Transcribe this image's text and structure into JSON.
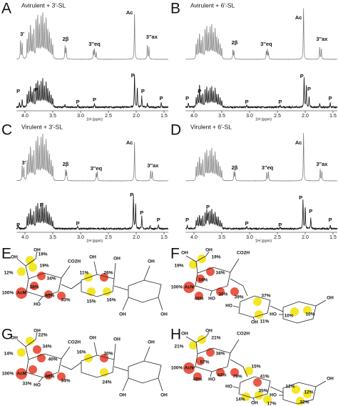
{
  "spectra": [
    {
      "letter": "A",
      "title": "Avirulent + 3'-SL",
      "top_labels": [
        "3'",
        "2β",
        "3''eq",
        "Ac",
        "3''ax"
      ],
      "bottom_labels": [
        "P",
        "P",
        "P",
        "P",
        "P",
        "P",
        "P"
      ],
      "axis_ticks": [
        "4.0",
        "3.5",
        "3.0",
        "2.5",
        "2.0",
        "1.5"
      ],
      "axis_label": "1H (ppm)"
    },
    {
      "letter": "B",
      "title": "Avirulent + 6'-SL",
      "top_labels": [
        "2β",
        "3''eq",
        "Ac",
        "3''ax"
      ],
      "bottom_labels": [
        "P",
        "P",
        "P",
        "P",
        "P",
        "P",
        "P"
      ],
      "axis_ticks": [
        "4.0",
        "3.5",
        "3.0",
        "2.5",
        "2.0",
        "1.5"
      ],
      "axis_label": "1H (ppm)"
    },
    {
      "letter": "C",
      "title": "Virulent + 3'-SL",
      "top_labels": [
        "3'",
        "2β",
        "3''eq",
        "Ac",
        "3''ax"
      ],
      "bottom_labels": [
        "P",
        "P",
        "P",
        "P",
        "P",
        "P"
      ],
      "axis_ticks": [
        "4.0",
        "3.5",
        "3.0",
        "2.5",
        "2.0",
        "1.5"
      ],
      "axis_label": "1H (ppm)"
    },
    {
      "letter": "D",
      "title": "Virulent + 6'-SL",
      "top_labels": [
        "2β",
        "3''eq",
        "Ac",
        "3''ax"
      ],
      "bottom_labels": [
        "P",
        "P",
        "P",
        "P",
        "P",
        "P",
        "P"
      ],
      "axis_ticks": [
        "4.0",
        "3.5",
        "3.0",
        "2.5",
        "2.0",
        "1.5"
      ],
      "axis_label": "1H (ppm)"
    }
  ],
  "structures": [
    {
      "letter": "E",
      "atoms": [
        "OH",
        "OH",
        "AcN",
        "HO",
        "CO2H",
        "OH",
        "OH",
        "OH",
        "OH",
        "OH"
      ],
      "percents": [
        "12%",
        "19%",
        "19%",
        "34%",
        "38%",
        "55%",
        "33%",
        "11%",
        "26%",
        "15%",
        "16%",
        "100%"
      ]
    },
    {
      "letter": "F",
      "atoms": [
        "OH",
        "OH",
        "AcN",
        "HO",
        "CO2H",
        "HO",
        "OH",
        "HO",
        "OH"
      ],
      "percents": [
        "19%",
        "19%",
        "34%",
        "59%",
        "48%",
        "30%",
        "39%",
        "37%",
        "11%",
        "10%",
        "10%",
        "100%"
      ]
    },
    {
      "letter": "G",
      "atoms": [
        "OH",
        "OH",
        "AcN",
        "HO",
        "CO2H",
        "OH",
        "OH",
        "OH",
        "OH",
        "OH"
      ],
      "percents": [
        "14%",
        "22%",
        "34%",
        "40%",
        "33%",
        "58%",
        "34%",
        "16%",
        "30%",
        "24%",
        "100%"
      ]
    },
    {
      "letter": "H",
      "atoms": [
        "OH",
        "OH",
        "AcN",
        "HO",
        "CO2H",
        "HO",
        "OH",
        "HO",
        "OH"
      ],
      "percents": [
        "21%",
        "21%",
        "38%",
        "57%",
        "49%",
        "44%",
        "79%",
        "15%",
        "41%",
        "35%",
        "14%",
        "17%",
        "12%",
        "12%",
        "32%",
        "100%"
      ]
    }
  ]
}
